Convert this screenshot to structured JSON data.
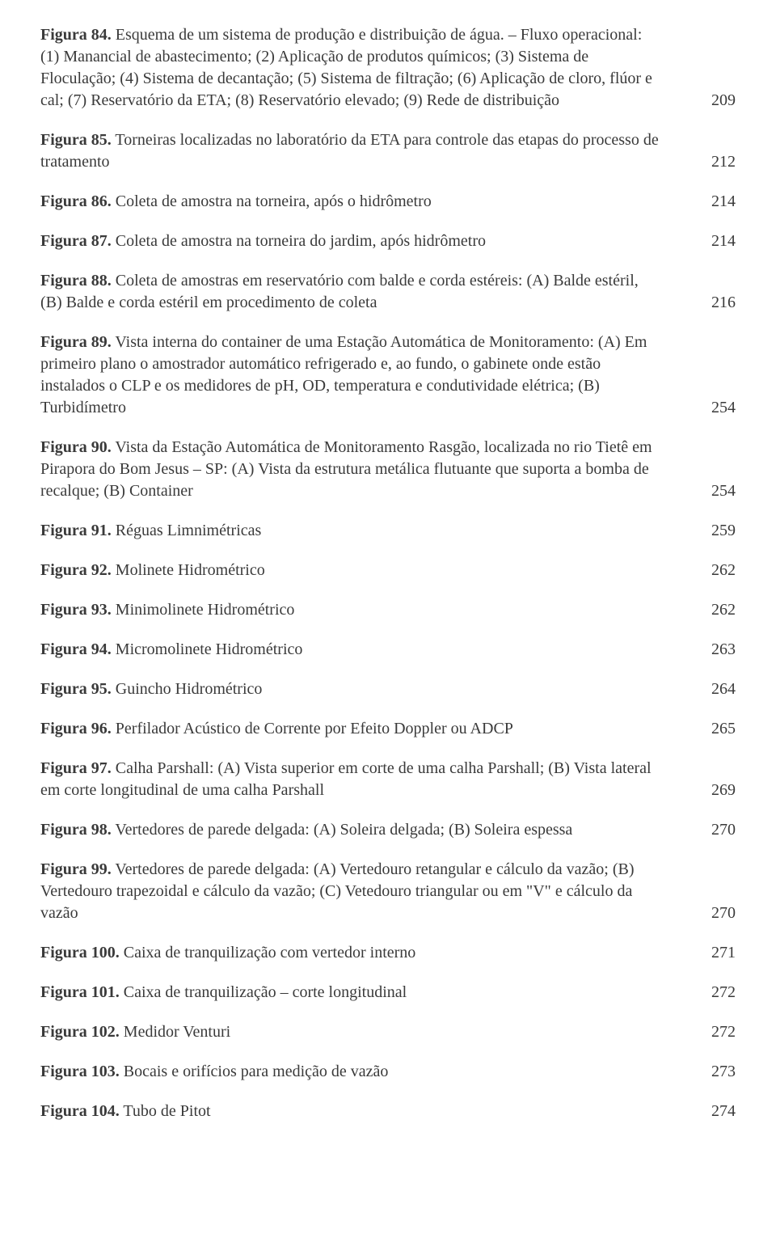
{
  "entries": [
    {
      "label": "Figura 84.",
      "text": " Esquema de um sistema de produção e distribuição de água. – Fluxo operacional: (1) Manancial de abastecimento; (2) Aplicação de produtos químicos; (3) Sistema de Floculação; (4) Sistema de decantação; (5) Sistema de filtração; (6) Aplicação de cloro, flúor e cal; (7) Reservatório da ETA; (8) Reservatório elevado; (9) Rede de distribuição",
      "page": "209"
    },
    {
      "label": "Figura 85.",
      "text": " Torneiras localizadas no laboratório da ETA para controle das etapas do processo de tratamento",
      "page": "212"
    },
    {
      "label": "Figura 86.",
      "text": " Coleta de amostra na torneira, após o hidrômetro",
      "page": "214"
    },
    {
      "label": "Figura 87.",
      "text": " Coleta de amostra na torneira do jardim, após hidrômetro",
      "page": "214"
    },
    {
      "label": "Figura 88.",
      "text": " Coleta de amostras em reservatório com balde e corda estéreis: (A) Balde estéril, (B) Balde e corda estéril em procedimento de coleta",
      "page": "216"
    },
    {
      "label": "Figura 89.",
      "text": " Vista interna do container de uma Estação Automática de Monitoramento: (A) Em primeiro plano o amostrador automático refrigerado e, ao fundo, o gabinete onde estão instalados o CLP e os medidores de pH, OD, temperatura e condutividade elétrica; (B) Turbidímetro",
      "page": "254"
    },
    {
      "label": "Figura 90.",
      "text": " Vista da Estação Automática de Monitoramento Rasgão, localizada no rio Tietê em Pirapora do Bom Jesus – SP: (A) Vista da estrutura metálica flutuante que suporta a bomba de recalque; (B) Container",
      "page": "254"
    },
    {
      "label": "Figura 91.",
      "text": " Réguas Limnimétricas",
      "page": "259"
    },
    {
      "label": "Figura 92.",
      "text": " Molinete Hidrométrico",
      "page": "262"
    },
    {
      "label": "Figura 93.",
      "text": " Minimolinete Hidrométrico",
      "page": "262"
    },
    {
      "label": "Figura 94.",
      "text": " Micromolinete Hidrométrico",
      "page": "263"
    },
    {
      "label": "Figura 95.",
      "text": " Guincho Hidrométrico",
      "page": "264"
    },
    {
      "label": "Figura 96.",
      "text": " Perfilador Acústico de Corrente por Efeito Doppler ou ADCP",
      "page": "265"
    },
    {
      "label": "Figura 97.",
      "text": " Calha Parshall: (A) Vista superior em corte de uma calha Parshall; (B) Vista lateral em corte longitudinal de uma calha Parshall",
      "page": "269"
    },
    {
      "label": "Figura 98.",
      "text": " Vertedores de parede delgada: (A) Soleira delgada; (B) Soleira espessa",
      "page": "270"
    },
    {
      "label": "Figura 99.",
      "text": " Vertedores de parede delgada: (A) Vertedouro retangular e cálculo da vazão; (B) Vertedouro trapezoidal e cálculo da vazão; (C) Vetedouro triangular ou em \"V\" e cálculo da vazão",
      "page": "270"
    },
    {
      "label": "Figura 100.",
      "text": " Caixa de tranquilização com vertedor interno",
      "page": "271"
    },
    {
      "label": "Figura 101.",
      "text": " Caixa de tranquilização – corte longitudinal",
      "page": "272"
    },
    {
      "label": "Figura 102.",
      "text": " Medidor Venturi",
      "page": "272"
    },
    {
      "label": "Figura 103.",
      "text": " Bocais e orifícios para medição de vazão",
      "page": "273"
    },
    {
      "label": "Figura 104.",
      "text": " Tubo de Pitot",
      "page": "274"
    }
  ]
}
